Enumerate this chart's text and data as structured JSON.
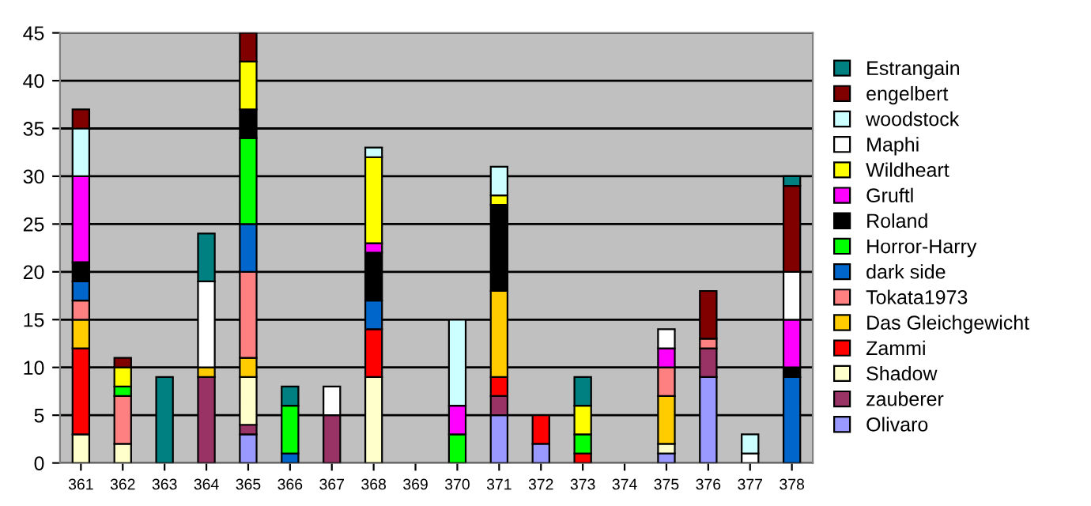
{
  "chart_data": {
    "type": "bar",
    "stacked": true,
    "categories": [
      "361",
      "362",
      "363",
      "364",
      "365",
      "366",
      "367",
      "368",
      "369",
      "370",
      "371",
      "372",
      "373",
      "374",
      "375",
      "376",
      "377",
      "378"
    ],
    "series": [
      {
        "name": "Olivaro",
        "color": "#9999ff",
        "values": [
          null,
          null,
          null,
          null,
          3,
          null,
          null,
          null,
          null,
          null,
          5,
          2,
          null,
          null,
          1,
          9,
          null,
          null
        ]
      },
      {
        "name": "zauberer",
        "color": "#993366",
        "values": [
          null,
          null,
          null,
          9,
          1,
          null,
          5,
          null,
          null,
          null,
          2,
          null,
          null,
          null,
          null,
          3,
          null,
          null
        ]
      },
      {
        "name": "Shadow",
        "color": "#ffffcc",
        "values": [
          3,
          2,
          null,
          null,
          5,
          null,
          null,
          9,
          null,
          null,
          null,
          null,
          null,
          null,
          1,
          null,
          null,
          null
        ]
      },
      {
        "name": "Zammi",
        "color": "#ff0000",
        "values": [
          9,
          null,
          null,
          null,
          null,
          null,
          null,
          5,
          null,
          null,
          2,
          3,
          1,
          null,
          null,
          null,
          null,
          null
        ]
      },
      {
        "name": "Das Gleichgewicht",
        "color": "#ffcc00",
        "values": [
          3,
          null,
          null,
          1,
          2,
          null,
          null,
          null,
          null,
          null,
          9,
          null,
          null,
          null,
          5,
          null,
          null,
          null
        ]
      },
      {
        "name": "Tokata1973",
        "color": "#ff8080",
        "values": [
          2,
          5,
          null,
          null,
          9,
          null,
          null,
          null,
          null,
          null,
          null,
          null,
          null,
          null,
          3,
          1,
          null,
          null
        ]
      },
      {
        "name": "dark side",
        "color": "#0066cc",
        "values": [
          2,
          null,
          null,
          null,
          5,
          1,
          null,
          3,
          null,
          null,
          null,
          null,
          null,
          null,
          null,
          null,
          null,
          9
        ]
      },
      {
        "name": "Horror-Harry",
        "color": "#00ff00",
        "values": [
          null,
          1,
          null,
          null,
          9,
          5,
          null,
          null,
          null,
          3,
          null,
          null,
          2,
          null,
          null,
          null,
          null,
          null
        ]
      },
      {
        "name": "Roland",
        "color": "#000000",
        "values": [
          2,
          null,
          null,
          null,
          3,
          null,
          null,
          5,
          null,
          null,
          9,
          null,
          null,
          null,
          null,
          null,
          null,
          1
        ]
      },
      {
        "name": "Gruftl",
        "color": "#ff00ff",
        "values": [
          9,
          null,
          null,
          null,
          null,
          null,
          null,
          1,
          null,
          3,
          null,
          null,
          null,
          null,
          2,
          null,
          null,
          5
        ]
      },
      {
        "name": "Wildheart",
        "color": "#ffff00",
        "values": [
          null,
          2,
          null,
          null,
          5,
          null,
          null,
          9,
          null,
          null,
          1,
          null,
          3,
          null,
          null,
          null,
          null,
          null
        ]
      },
      {
        "name": "Maphi",
        "color": "#ffffff",
        "values": [
          null,
          null,
          null,
          9,
          null,
          null,
          3,
          null,
          null,
          null,
          null,
          null,
          null,
          null,
          2,
          null,
          1,
          5
        ]
      },
      {
        "name": "woodstock",
        "color": "#ccffff",
        "values": [
          5,
          null,
          null,
          null,
          null,
          null,
          null,
          1,
          null,
          9,
          3,
          null,
          null,
          null,
          null,
          null,
          2,
          null
        ]
      },
      {
        "name": "engelbert",
        "color": "#800000",
        "values": [
          2,
          1,
          null,
          null,
          3,
          null,
          null,
          null,
          null,
          null,
          null,
          null,
          null,
          null,
          null,
          5,
          null,
          9
        ]
      },
      {
        "name": "Estrangain",
        "color": "#008080",
        "values": [
          null,
          null,
          9,
          5,
          null,
          2,
          null,
          null,
          null,
          null,
          null,
          null,
          3,
          null,
          null,
          null,
          null,
          1
        ]
      }
    ],
    "ylim": [
      0,
      45
    ],
    "yticks": [
      0,
      5,
      10,
      15,
      20,
      25,
      30,
      35,
      40,
      45
    ],
    "grid": "y",
    "legend": "right"
  }
}
